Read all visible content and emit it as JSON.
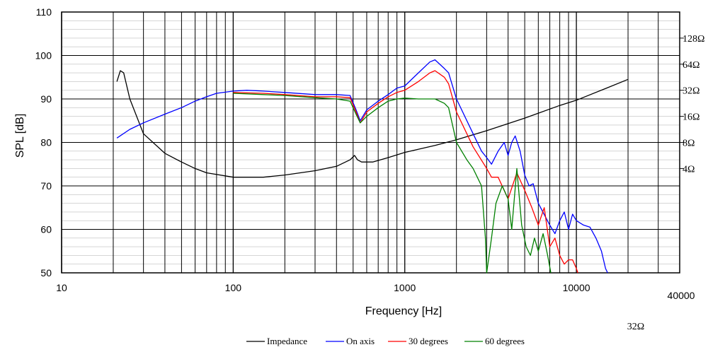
{
  "chart_data": {
    "type": "line",
    "xlabel": "Frequency [Hz]",
    "ylabel": "SPL [dB]",
    "x_scale": "log",
    "xlim": [
      10,
      40000
    ],
    "ylim": [
      50,
      110
    ],
    "x_tick_labels": [
      "10",
      "100",
      "1000",
      "10000",
      "40000"
    ],
    "y_tick_labels": [
      "50",
      "60",
      "70",
      "80",
      "90",
      "100",
      "110"
    ],
    "impedance_axis": {
      "labels": [
        "128Ω",
        "64Ω",
        "32Ω",
        "16Ω",
        "8Ω",
        "4Ω"
      ],
      "extra_label": "32Ω"
    },
    "grid": true,
    "legend_position": "bottom",
    "series": [
      {
        "name": "Impedance",
        "color": "#000000",
        "points": [
          [
            21,
            94
          ],
          [
            22,
            96.5
          ],
          [
            23,
            96
          ],
          [
            25,
            90
          ],
          [
            30,
            82
          ],
          [
            40,
            77.5
          ],
          [
            50,
            75.5
          ],
          [
            60,
            74
          ],
          [
            70,
            73
          ],
          [
            100,
            72
          ],
          [
            150,
            72
          ],
          [
            200,
            72.5
          ],
          [
            300,
            73.5
          ],
          [
            400,
            74.5
          ],
          [
            480,
            76
          ],
          [
            510,
            77
          ],
          [
            530,
            76
          ],
          [
            560,
            75.5
          ],
          [
            650,
            75.5
          ],
          [
            800,
            76.5
          ],
          [
            1000,
            77.7
          ],
          [
            1500,
            79.3
          ],
          [
            2000,
            80.6
          ],
          [
            3000,
            82.7
          ],
          [
            5000,
            85.6
          ],
          [
            8000,
            88.5
          ],
          [
            10000,
            89.7
          ],
          [
            15000,
            92.5
          ],
          [
            20000,
            94.5
          ]
        ]
      },
      {
        "name": "On axis",
        "color": "#0000ff",
        "points": [
          [
            21,
            81
          ],
          [
            25,
            83
          ],
          [
            30,
            84.5
          ],
          [
            40,
            86.5
          ],
          [
            50,
            88
          ],
          [
            60,
            89.5
          ],
          [
            70,
            90.5
          ],
          [
            80,
            91.3
          ],
          [
            100,
            91.8
          ],
          [
            120,
            92
          ],
          [
            150,
            91.8
          ],
          [
            200,
            91.5
          ],
          [
            300,
            91
          ],
          [
            400,
            91
          ],
          [
            480,
            90.8
          ],
          [
            520,
            87.5
          ],
          [
            550,
            85
          ],
          [
            600,
            87.5
          ],
          [
            700,
            89.5
          ],
          [
            800,
            91
          ],
          [
            900,
            92.5
          ],
          [
            1000,
            93
          ],
          [
            1200,
            96
          ],
          [
            1400,
            98.5
          ],
          [
            1500,
            99
          ],
          [
            1700,
            97
          ],
          [
            1800,
            96
          ],
          [
            2000,
            90
          ],
          [
            2500,
            82
          ],
          [
            2800,
            78
          ],
          [
            3000,
            76.5
          ],
          [
            3200,
            75
          ],
          [
            3500,
            78
          ],
          [
            3800,
            80
          ],
          [
            4000,
            77
          ],
          [
            4200,
            80
          ],
          [
            4400,
            81.5
          ],
          [
            4700,
            78
          ],
          [
            5000,
            72.5
          ],
          [
            5300,
            70
          ],
          [
            5600,
            70.5
          ],
          [
            6000,
            66
          ],
          [
            7000,
            61
          ],
          [
            7500,
            59
          ],
          [
            8000,
            62
          ],
          [
            8500,
            64
          ],
          [
            9000,
            60
          ],
          [
            9500,
            63.5
          ],
          [
            10000,
            62
          ],
          [
            11000,
            61
          ],
          [
            12000,
            60.5
          ],
          [
            13000,
            58
          ],
          [
            14000,
            55
          ],
          [
            14800,
            51
          ],
          [
            15200,
            50
          ]
        ]
      },
      {
        "name": "30 degrees",
        "color": "#ff0000",
        "points": [
          [
            100,
            91.5
          ],
          [
            150,
            91.3
          ],
          [
            200,
            91
          ],
          [
            300,
            90.5
          ],
          [
            400,
            90.5
          ],
          [
            480,
            90.3
          ],
          [
            520,
            87
          ],
          [
            550,
            84.5
          ],
          [
            600,
            87
          ],
          [
            700,
            89
          ],
          [
            800,
            90.5
          ],
          [
            900,
            91.5
          ],
          [
            1000,
            92
          ],
          [
            1200,
            94
          ],
          [
            1400,
            96
          ],
          [
            1500,
            96.5
          ],
          [
            1700,
            95
          ],
          [
            1800,
            93.5
          ],
          [
            2000,
            87
          ],
          [
            2500,
            79
          ],
          [
            3000,
            74
          ],
          [
            3200,
            72
          ],
          [
            3500,
            72
          ],
          [
            4000,
            67
          ],
          [
            4500,
            73
          ],
          [
            5000,
            69
          ],
          [
            5500,
            65
          ],
          [
            6000,
            61
          ],
          [
            6500,
            65
          ],
          [
            7000,
            56
          ],
          [
            7500,
            58
          ],
          [
            8000,
            54
          ],
          [
            8500,
            52
          ],
          [
            9000,
            53
          ],
          [
            9500,
            53
          ],
          [
            10000,
            51
          ],
          [
            10200,
            50
          ]
        ]
      },
      {
        "name": "60 degrees",
        "color": "#008000",
        "points": [
          [
            100,
            91.3
          ],
          [
            150,
            91
          ],
          [
            200,
            90.8
          ],
          [
            300,
            90.3
          ],
          [
            400,
            90
          ],
          [
            480,
            89.5
          ],
          [
            520,
            86.5
          ],
          [
            550,
            84.5
          ],
          [
            600,
            86
          ],
          [
            700,
            88
          ],
          [
            800,
            89.5
          ],
          [
            900,
            90
          ],
          [
            1000,
            90.2
          ],
          [
            1200,
            90
          ],
          [
            1500,
            90
          ],
          [
            1700,
            89
          ],
          [
            1800,
            88
          ],
          [
            2000,
            80
          ],
          [
            2300,
            76
          ],
          [
            2500,
            74
          ],
          [
            2800,
            70
          ],
          [
            2950,
            58
          ],
          [
            3000,
            50
          ],
          [
            3200,
            58
          ],
          [
            3400,
            66
          ],
          [
            3700,
            70
          ],
          [
            4000,
            67
          ],
          [
            4200,
            60
          ],
          [
            4500,
            74
          ],
          [
            4800,
            61
          ],
          [
            5100,
            56
          ],
          [
            5400,
            54
          ],
          [
            5700,
            58
          ],
          [
            6000,
            55
          ],
          [
            6400,
            59
          ],
          [
            6800,
            54
          ],
          [
            7100,
            50
          ]
        ]
      }
    ]
  }
}
